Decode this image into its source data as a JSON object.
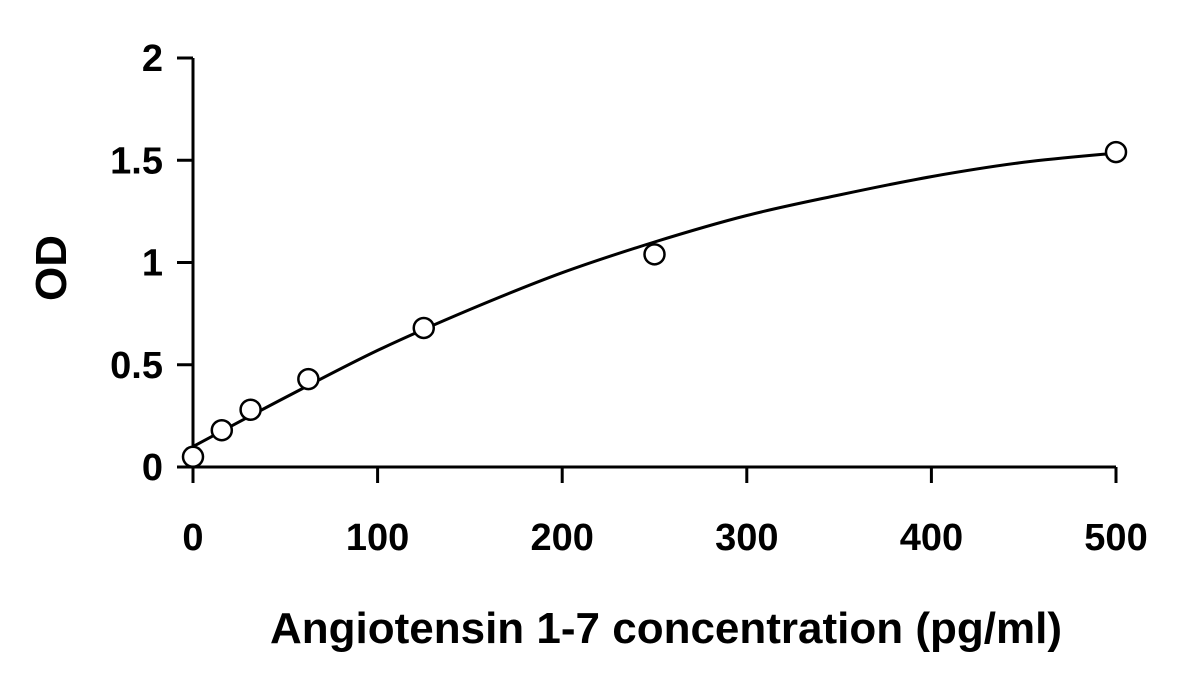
{
  "chart_data": {
    "type": "scatter",
    "title": "",
    "xlabel": "Angiotensin 1-7 concentration (pg/ml)",
    "ylabel": "OD",
    "xlim": [
      0,
      500
    ],
    "ylim": [
      0,
      2
    ],
    "x_ticks": [
      0,
      100,
      200,
      300,
      400,
      500
    ],
    "x_tick_labels": [
      "0",
      "100",
      "200",
      "300",
      "400",
      "500"
    ],
    "y_ticks": [
      0,
      0.5,
      1,
      1.5,
      2
    ],
    "y_tick_labels": [
      "0",
      "0.5",
      "1",
      "1.5",
      "2"
    ],
    "grid": false,
    "legend": "none",
    "series": [
      {
        "marker": "open-circle",
        "x": [
          0,
          15.6,
          31.2,
          62.5,
          125,
          250,
          500
        ],
        "y": [
          0.05,
          0.18,
          0.28,
          0.43,
          0.68,
          1.04,
          1.54
        ]
      }
    ],
    "fit_curve": {
      "type": "smooth-fit",
      "x": [
        0,
        50,
        100,
        150,
        200,
        250,
        300,
        350,
        400,
        450,
        500
      ],
      "y": [
        0.1,
        0.34,
        0.57,
        0.77,
        0.95,
        1.1,
        1.23,
        1.33,
        1.42,
        1.49,
        1.535
      ]
    },
    "colors": {
      "axis": "#000000",
      "marker_edge": "#000000",
      "marker_fill": "#ffffff",
      "curve": "#000000"
    }
  }
}
